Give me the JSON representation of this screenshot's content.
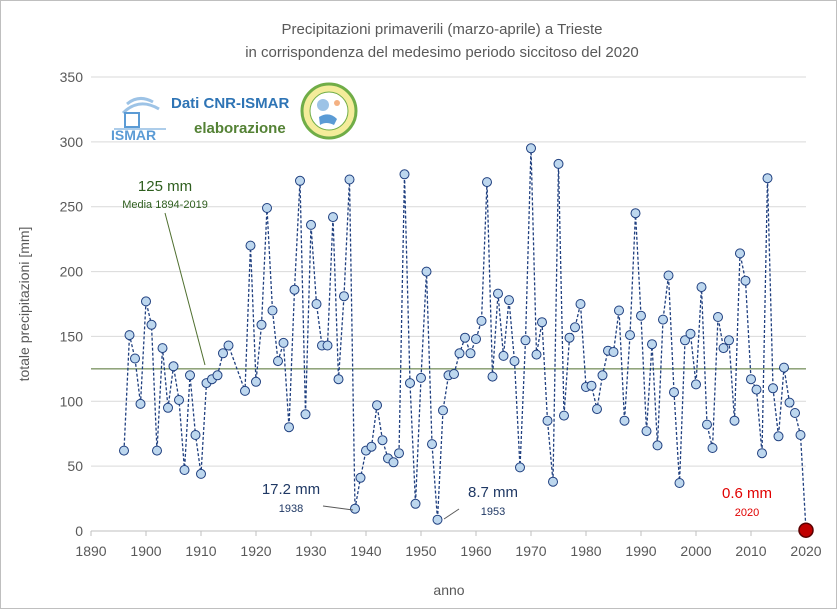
{
  "colors": {
    "series_line": "#1f3f7f",
    "marker_fill": "#bdd7ee",
    "marker_stroke": "#1f3f7f",
    "last_marker": "#c00000",
    "mean_line": "#4f6f2f",
    "grid": "#d9d9d9"
  },
  "logos": {
    "source_title": "Dati CNR-ISMAR",
    "source_sub": "elaborazione",
    "ismar_logo_text": "ISMAR"
  },
  "chart_data": {
    "type": "line",
    "title": "Precipitazioni primaverili (marzo-aprile) a Trieste",
    "subtitle": "in corrispondenza del medesimo periodo siccitoso del 2020",
    "xlabel": "anno",
    "ylabel": "totale precipitazioni [mm]",
    "xlim": [
      1890,
      2020
    ],
    "ylim": [
      0,
      350
    ],
    "xticks": [
      1890,
      1900,
      1910,
      1920,
      1930,
      1940,
      1950,
      1960,
      1970,
      1980,
      1990,
      2000,
      2010,
      2020
    ],
    "yticks": [
      0,
      50,
      100,
      150,
      200,
      250,
      300,
      350
    ],
    "grid": "horizontal",
    "series": [
      {
        "x": [
          1896,
          1897,
          1898,
          1899,
          1900,
          1901,
          1902,
          1903,
          1904,
          1905,
          1906,
          1907,
          1908,
          1909,
          1910,
          1911,
          1912,
          1913,
          1914,
          1915,
          1918,
          1919,
          1920,
          1921,
          1922,
          1923,
          1924,
          1925,
          1926,
          1927,
          1928,
          1929,
          1930,
          1931,
          1932,
          1933,
          1934,
          1935,
          1936,
          1937,
          1938,
          1939,
          1940,
          1941,
          1942,
          1943,
          1944,
          1945,
          1946,
          1947,
          1948,
          1949,
          1950,
          1951,
          1952,
          1953,
          1954,
          1955,
          1956,
          1957,
          1958,
          1959,
          1960,
          1961,
          1962,
          1963,
          1964,
          1965,
          1966,
          1967,
          1968,
          1969,
          1970,
          1971,
          1972,
          1973,
          1974,
          1975,
          1976,
          1977,
          1978,
          1979,
          1980,
          1981,
          1982,
          1983,
          1984,
          1985,
          1986,
          1987,
          1988,
          1989,
          1990,
          1991,
          1992,
          1993,
          1994,
          1995,
          1996,
          1997,
          1998,
          1999,
          2000,
          2001,
          2002,
          2003,
          2004,
          2005,
          2006,
          2007,
          2008,
          2009,
          2010,
          2011,
          2012,
          2013,
          2014,
          2015,
          2016,
          2017,
          2018,
          2019,
          2020
        ],
        "values": [
          62,
          151,
          133,
          98,
          177,
          159,
          62,
          141,
          95,
          127,
          101,
          47,
          120,
          74,
          44,
          114,
          117,
          120,
          137,
          143,
          108,
          220,
          115,
          159,
          249,
          170,
          131,
          145,
          80,
          186,
          270,
          90,
          236,
          175,
          143,
          143,
          242,
          117,
          181,
          271,
          17.2,
          41,
          62,
          65,
          97,
          70,
          56,
          53,
          60,
          275,
          114,
          21,
          118,
          200,
          67,
          8.7,
          93,
          120,
          121,
          137,
          149,
          137,
          148,
          162,
          269,
          119,
          183,
          135,
          178,
          131,
          49,
          147,
          295,
          136,
          161,
          85,
          38,
          283,
          89,
          149,
          157,
          175,
          111,
          112,
          94,
          120,
          139,
          138,
          170,
          85,
          151,
          245,
          166,
          77,
          144,
          66,
          163,
          197,
          107,
          37,
          147,
          152,
          113,
          188,
          82,
          64,
          165,
          141,
          147,
          85,
          214,
          193,
          117,
          109,
          60,
          272,
          110,
          73,
          126,
          99,
          91,
          74,
          0.6
        ]
      }
    ],
    "mean": {
      "value": 125,
      "label": "125 mm",
      "note": "Media 1894-2019"
    },
    "annotations": [
      {
        "id": "min1938",
        "label": "17.2 mm",
        "year": "1938"
      },
      {
        "id": "min1953",
        "label": "8.7 mm",
        "year": "1953"
      },
      {
        "id": "last2020",
        "label": "0.6 mm",
        "year": "2020"
      }
    ]
  }
}
